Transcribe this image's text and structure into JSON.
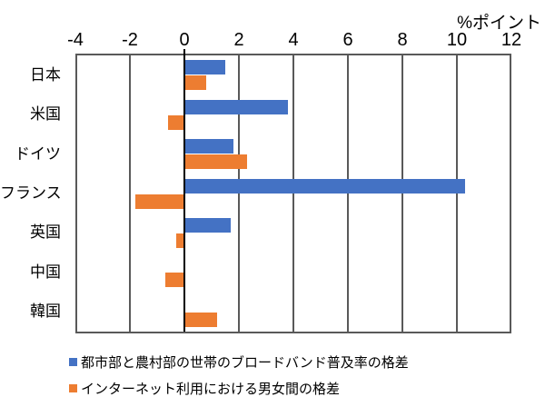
{
  "chart_data": {
    "type": "bar",
    "orientation": "horizontal",
    "unit_label": "%ポイント",
    "categories": [
      "日本",
      "米国",
      "ドイツ",
      "フランス",
      "英国",
      "中国",
      "韓国"
    ],
    "series": [
      {
        "name": "都市部と農村部の世帯のブロードバンド普及率の格差",
        "color": "#4472C4",
        "values": [
          1.5,
          3.8,
          1.8,
          10.3,
          1.7,
          0,
          0
        ]
      },
      {
        "name": "インターネット利用における男女間の格差",
        "color": "#ED7D31",
        "values": [
          0.8,
          -0.6,
          2.3,
          -1.8,
          -0.3,
          -0.7,
          1.2
        ]
      }
    ],
    "xlim": [
      -4,
      12
    ],
    "xticks": [
      -4,
      -2,
      0,
      2,
      4,
      6,
      8,
      10,
      12
    ],
    "grid": true,
    "grid_color": "#595959",
    "zero_axis_color": "#000000",
    "legend_position": "bottom-left"
  }
}
